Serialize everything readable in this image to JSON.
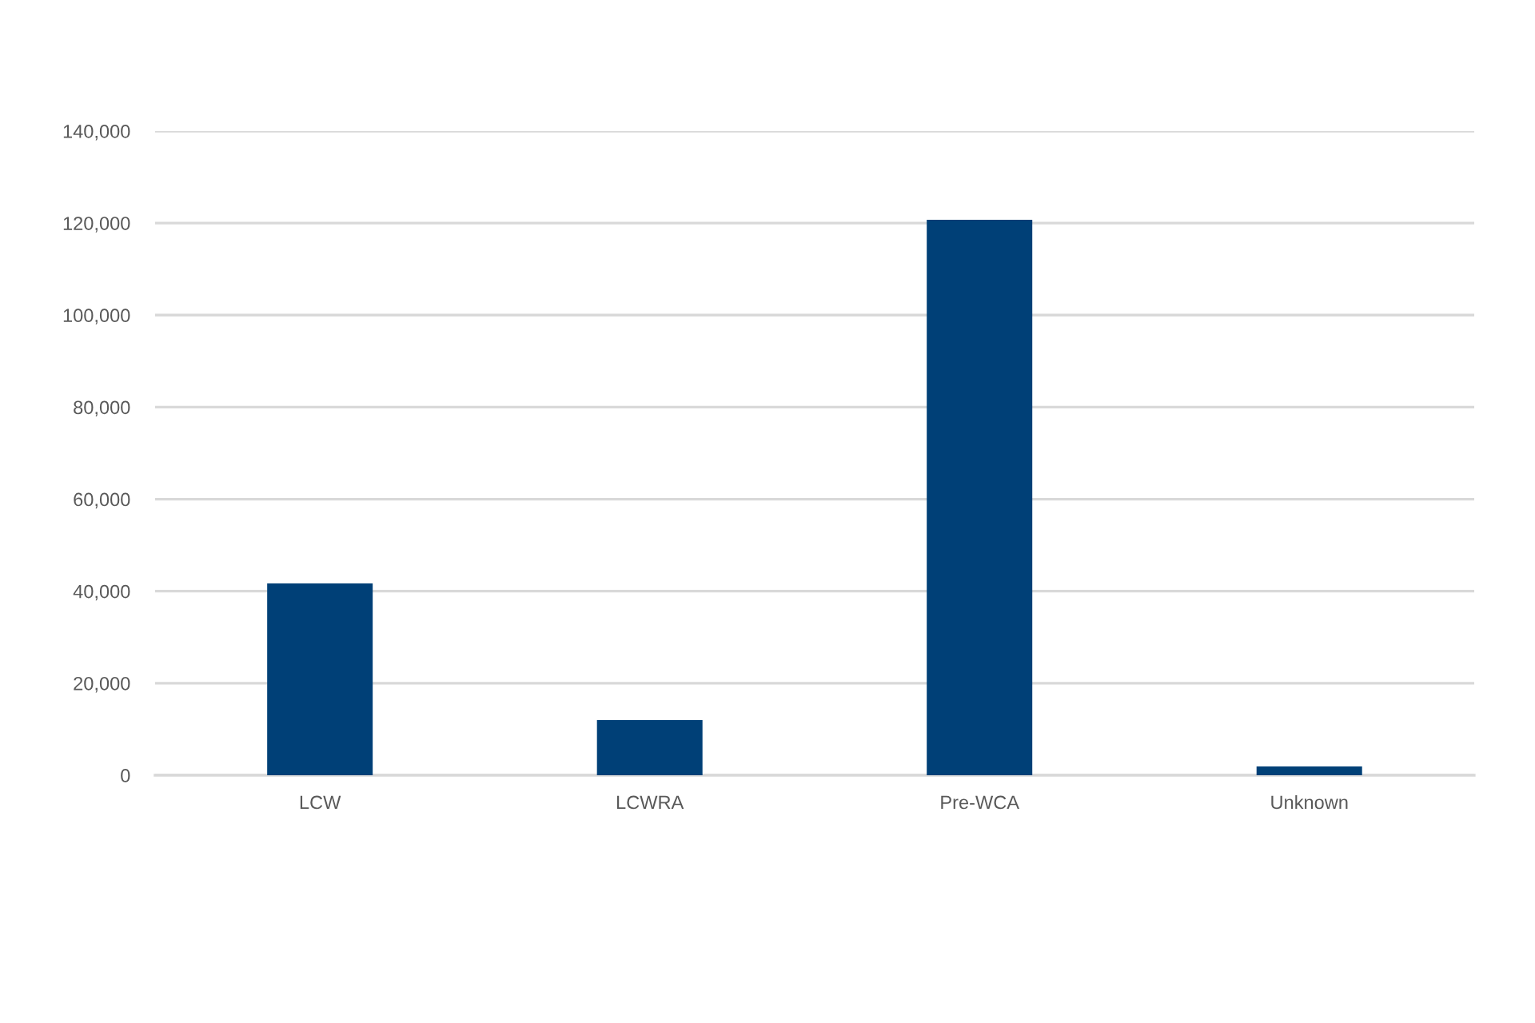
{
  "chart_data": {
    "type": "bar",
    "categories": [
      "LCW",
      "LCWRA",
      "Pre-WCA",
      "Unknown"
    ],
    "values": [
      41700,
      12000,
      120700,
      1900
    ],
    "color": "#004077",
    "ylim": [
      0,
      140000
    ],
    "yticks": [
      {
        "value": 0,
        "label": "0"
      },
      {
        "value": 20000,
        "label": "20,000"
      },
      {
        "value": 40000,
        "label": "40,000"
      },
      {
        "value": 60000,
        "label": "60,000"
      },
      {
        "value": 80000,
        "label": "80,000"
      },
      {
        "value": 100000,
        "label": "100,000"
      },
      {
        "value": 120000,
        "label": "120,000"
      },
      {
        "value": 140000,
        "label": "140,000"
      }
    ],
    "grid": "y"
  }
}
